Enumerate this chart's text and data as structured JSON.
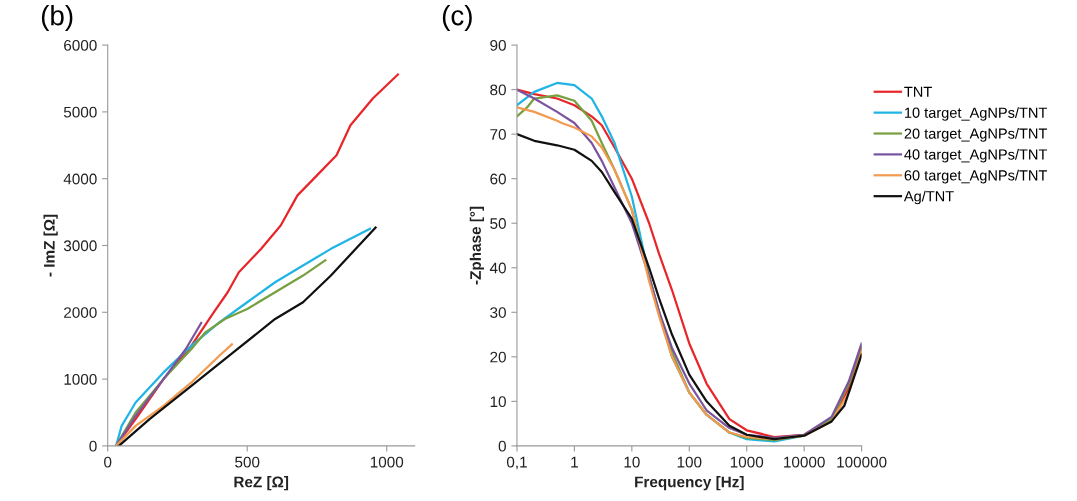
{
  "chart_data": [
    {
      "type": "line",
      "title": "(b)",
      "xlabel": "ReZ [Ω]",
      "ylabel": "- ImZ [Ω]",
      "xlim": [
        0,
        1100
      ],
      "xticks": [
        0,
        500,
        1000
      ],
      "ylim": [
        0,
        6000
      ],
      "yticks": [
        0,
        1000,
        2000,
        3000,
        4000,
        5000,
        6000
      ],
      "grid": false,
      "legend": false,
      "marker": "none",
      "line_style": "solid",
      "series": [
        {
          "color": "#e8262a",
          "x": [
            30,
            100,
            200,
            300,
            380,
            430,
            470,
            550,
            620,
            680,
            750,
            820,
            870,
            950,
            1040
          ],
          "values": [
            0,
            400,
            1000,
            1500,
            2000,
            2300,
            2600,
            2950,
            3300,
            3750,
            4050,
            4350,
            4800,
            5200,
            5560
          ]
        },
        {
          "color": "#1fb4e6",
          "x": [
            30,
            50,
            100,
            200,
            300,
            400,
            500,
            600,
            700,
            800,
            940
          ],
          "values": [
            0,
            300,
            650,
            1100,
            1500,
            1850,
            2150,
            2450,
            2700,
            2950,
            3250
          ]
        },
        {
          "color": "#77a040",
          "x": [
            30,
            100,
            200,
            300,
            350,
            420,
            500,
            600,
            700,
            780
          ],
          "values": [
            0,
            500,
            1000,
            1450,
            1700,
            1900,
            2050,
            2300,
            2550,
            2780
          ]
        },
        {
          "color": "#7a559e",
          "x": [
            30,
            100,
            200,
            280,
            335
          ],
          "values": [
            0,
            450,
            1000,
            1450,
            1840
          ]
        },
        {
          "color": "#f39a4f",
          "x": [
            30,
            100,
            200,
            300,
            400,
            445
          ],
          "values": [
            0,
            300,
            600,
            950,
            1350,
            1520
          ]
        },
        {
          "color": "#111111",
          "x": [
            40,
            150,
            300,
            450,
            600,
            700,
            800,
            960
          ],
          "values": [
            0,
            400,
            900,
            1400,
            1900,
            2150,
            2550,
            3270
          ]
        }
      ]
    },
    {
      "type": "line",
      "title": "(c)",
      "xlabel": "Frequency [Hz]",
      "ylabel": "-Zphase [°]",
      "log": "x",
      "xlim": [
        0.1,
        100000
      ],
      "xticks": [
        {
          "value": 0.1,
          "label": "0,1"
        },
        1,
        10,
        100,
        1000,
        10000,
        100000
      ],
      "ylim": [
        0,
        90
      ],
      "yticks": [
        0,
        10,
        20,
        30,
        40,
        50,
        60,
        70,
        80,
        90
      ],
      "grid": false,
      "legend": "right",
      "marker": "none",
      "line_style": "solid",
      "series": [
        {
          "name": "TNT",
          "color": "#e8262a",
          "x": [
            0.1,
            0.2,
            0.5,
            1,
            2,
            3,
            5,
            10,
            20,
            30,
            50,
            100,
            200,
            500,
            1000,
            3000,
            10000,
            30000,
            60000,
            100000
          ],
          "values": [
            80,
            79,
            78,
            76.5,
            74,
            72,
            67,
            60,
            50,
            43,
            35,
            23,
            14,
            6,
            3.5,
            2,
            2.5,
            6,
            13,
            22
          ]
        },
        {
          "name": "10 target_AgNPs/TNT",
          "color": "#1fb4e6",
          "x": [
            0.1,
            0.2,
            0.5,
            1,
            2,
            3,
            5,
            10,
            20,
            30,
            50,
            100,
            200,
            500,
            1000,
            3000,
            10000,
            30000
          ],
          "values": [
            76.5,
            79.5,
            81.5,
            81,
            78,
            74,
            68,
            56,
            38,
            30,
            20,
            12,
            7,
            3,
            1.5,
            1,
            2.3,
            6
          ]
        },
        {
          "name": "20 target_AgNPs/TNT",
          "color": "#77a040",
          "x": [
            0.1,
            0.15,
            0.2,
            0.5,
            1,
            2,
            3,
            5,
            10,
            20,
            30,
            50,
            100,
            200,
            500,
            1000,
            3000,
            10000,
            30000,
            60000,
            100000
          ],
          "values": [
            74,
            76,
            78,
            78.7,
            77.5,
            73,
            68,
            62,
            53,
            38,
            30,
            21,
            12,
            7,
            3,
            1.8,
            1.3,
            2.3,
            6,
            14,
            22.5
          ]
        },
        {
          "name": "40 target_AgNPs/TNT",
          "color": "#7a559e",
          "x": [
            0.1,
            0.2,
            0.5,
            1,
            2,
            3,
            5,
            10,
            20,
            30,
            50,
            100,
            200,
            500,
            1000,
            3000,
            10000,
            30000,
            60000,
            100000
          ],
          "values": [
            80,
            78,
            75,
            72.5,
            68,
            64,
            58,
            50,
            38,
            30,
            22,
            14,
            8,
            4,
            2.5,
            1.8,
            2.5,
            6.5,
            14.5,
            23
          ]
        },
        {
          "name": "60 target_AgNPs/TNT",
          "color": "#f39a4f",
          "x": [
            0.1,
            0.2,
            0.5,
            0.6,
            1,
            2,
            3,
            5,
            10,
            20,
            30,
            50,
            100,
            200,
            500,
            1000,
            3000,
            10000,
            30000,
            60000,
            100000
          ],
          "values": [
            76,
            75,
            73,
            72.5,
            71.5,
            69.5,
            67,
            62,
            53,
            37,
            29,
            20,
            12,
            7,
            3,
            2,
            1.5,
            2.3,
            5.5,
            12,
            21
          ]
        },
        {
          "name": "Ag/TNT",
          "color": "#111111",
          "x": [
            0.1,
            0.2,
            0.5,
            1,
            2,
            3,
            5,
            10,
            20,
            30,
            50,
            100,
            200,
            500,
            1000,
            3000,
            10000,
            30000,
            50000,
            100000
          ],
          "values": [
            70,
            68.5,
            67.5,
            66.5,
            64,
            61.5,
            57,
            51,
            40,
            33,
            25,
            16,
            10,
            4.5,
            2.5,
            1.5,
            2.3,
            5.5,
            9,
            20.5
          ]
        }
      ]
    }
  ]
}
